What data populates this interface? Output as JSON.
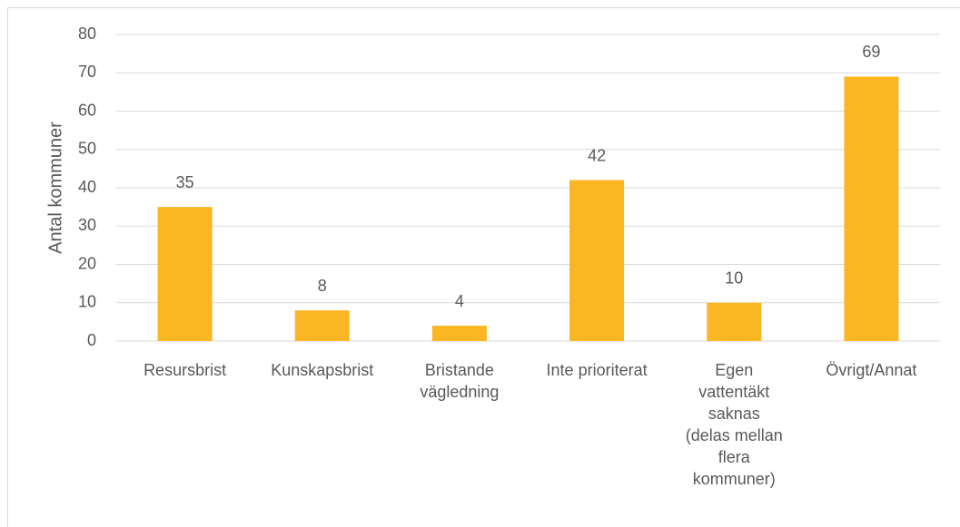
{
  "chart_data": {
    "type": "bar",
    "y_label": "Antal kommuner",
    "categories": [
      "Resursbrist",
      "Kunskapsbrist",
      "Bristande\nvägledning",
      "Inte prioriterat",
      "Egen\nvattentäkt\nsaknas\n(delas mellan\nflera\nkommuner)",
      "Övrigt/Annat"
    ],
    "values": [
      35,
      8,
      4,
      42,
      10,
      69
    ],
    "color": "#fbb623",
    "ylim": [
      0,
      80
    ],
    "yticks": [
      0,
      10,
      20,
      30,
      40,
      50,
      60,
      70,
      80
    ],
    "grid": true
  }
}
